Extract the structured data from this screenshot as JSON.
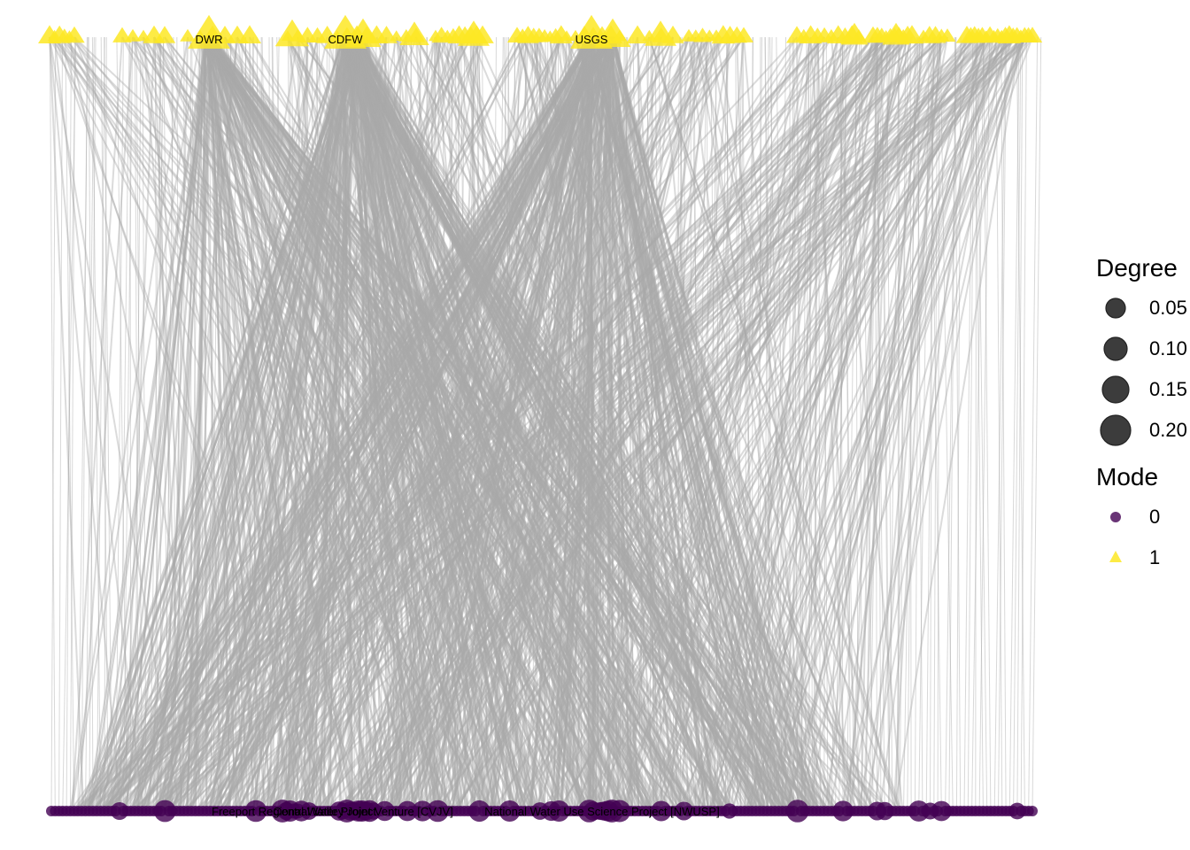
{
  "chart_data": {
    "type": "bipartite-network",
    "labels": {
      "top_nodes": [
        "DWR",
        "CDFW",
        "USGS"
      ],
      "bottom_nodes": [
        "Freeport Regional Water Project",
        "Central Valley Joint Venture [CVJV]",
        "National Water Use Science Project [NWUSP]"
      ]
    },
    "modes": [
      {
        "value": "0",
        "shape": "circle",
        "color": "#440154"
      },
      {
        "value": "1",
        "shape": "triangle",
        "color": "#FDE725"
      }
    ],
    "degree_scale": [
      0.05,
      0.1,
      0.15,
      0.2
    ],
    "edge_color": "#a9a9a9",
    "hubs_top": [
      {
        "label": "DWR",
        "degree": 0.17
      },
      {
        "label": "CDFW",
        "degree": 0.2
      },
      {
        "label": "USGS",
        "degree": 0.18
      }
    ]
  },
  "legend": {
    "degree_title": "Degree",
    "degree_items": [
      "0.05",
      "0.10",
      "0.15",
      "0.20"
    ],
    "mode_title": "Mode",
    "mode_items": [
      "0",
      "1"
    ]
  },
  "colors": {
    "top_node": "#FDE725",
    "bottom_node": "#440154",
    "edge": "#a9a9a9",
    "legend_circle": "#3c3c3c"
  }
}
